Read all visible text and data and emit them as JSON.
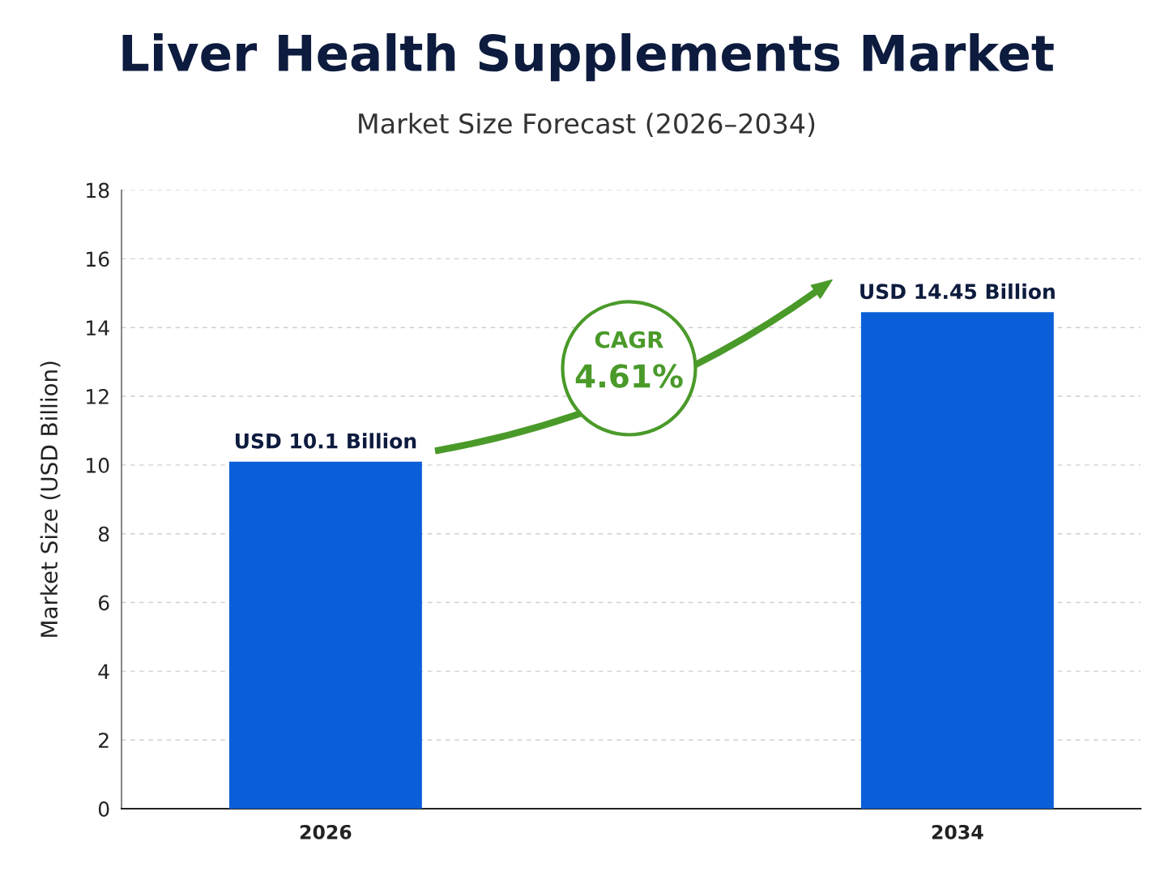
{
  "chart_data": {
    "type": "bar",
    "title": "Liver Health Supplements Market",
    "subtitle": "Market Size Forecast (2026–2034)",
    "ylabel": "Market Size (USD Billion)",
    "categories": [
      "2026",
      "2034"
    ],
    "values": [
      10.1,
      14.45
    ],
    "value_labels": [
      "USD 10.1 Billion",
      "USD 14.45 Billion"
    ],
    "color": "#0a5fd8",
    "ylim": [
      0,
      18
    ],
    "yticks": [
      0,
      2,
      4,
      6,
      8,
      10,
      12,
      14,
      16,
      18
    ],
    "grid": "y",
    "annotations": [
      "CAGR",
      "4.61%"
    ]
  }
}
